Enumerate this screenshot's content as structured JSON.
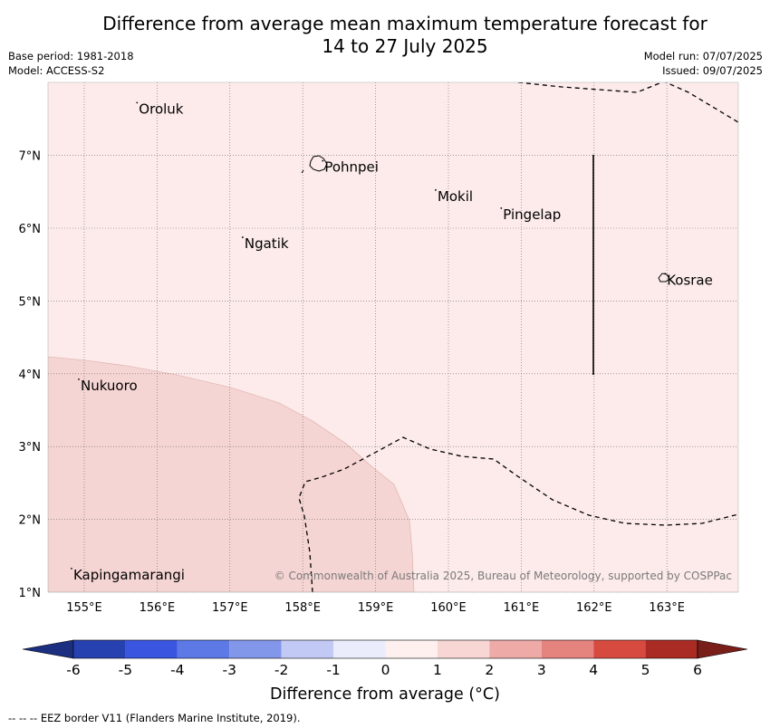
{
  "title": {
    "line1": "Difference from average mean maximum temperature forecast for",
    "line2": "14 to 27 July 2025"
  },
  "meta": {
    "base_period": "Base period: 1981-2018",
    "model": "Model: ACCESS-S2",
    "model_run": "Model run: 07/07/2025",
    "issued": "Issued: 09/07/2025"
  },
  "map": {
    "lon_ticks": [
      "155°E",
      "156°E",
      "157°E",
      "158°E",
      "159°E",
      "160°E",
      "161°E",
      "162°E",
      "163°E"
    ],
    "lat_ticks": [
      "1°N",
      "2°N",
      "3°N",
      "4°N",
      "5°N",
      "6°N",
      "7°N"
    ],
    "places": [
      {
        "name": "Oroluk",
        "lon": 155.75,
        "lat": 7.65
      },
      {
        "name": "Pohnpei",
        "lon": 158.3,
        "lat": 6.85
      },
      {
        "name": "Mokil",
        "lon": 159.85,
        "lat": 6.45
      },
      {
        "name": "Pingelap",
        "lon": 160.75,
        "lat": 6.2
      },
      {
        "name": "Ngatik",
        "lon": 157.2,
        "lat": 5.8
      },
      {
        "name": "Kosrae",
        "lon": 163.0,
        "lat": 5.3
      },
      {
        "name": "Nukuoro",
        "lon": 154.95,
        "lat": 3.85
      },
      {
        "name": "Kapingamarangi",
        "lon": 154.85,
        "lat": 1.25
      }
    ],
    "copyright": "© Commonwealth of Australia 2025, Bureau of Meteorology, supported by COSPPac",
    "category_colors": {
      "0_to_1": "#fcebea",
      "1_to_2": "#f5d5d3"
    }
  },
  "colorbar": {
    "ticks": [
      "-6",
      "-5",
      "-4",
      "-3",
      "-2",
      "-1",
      "0",
      "1",
      "2",
      "3",
      "4",
      "5",
      "6"
    ],
    "colors": [
      "#2841b0",
      "#3a55e0",
      "#5c79e6",
      "#8296ea",
      "#c2c9f4",
      "#eaecfb",
      "#fdf0ef",
      "#f7d6d4",
      "#edaaa7",
      "#e5847f",
      "#d74a40",
      "#aa2b24"
    ],
    "low_extend_color": "#1c2e80",
    "high_extend_color": "#7a1e1a",
    "label": "Difference from average (°C)"
  },
  "footnote": "--  --  -- EEZ border V11 (Flanders Marine Institute, 2019)."
}
